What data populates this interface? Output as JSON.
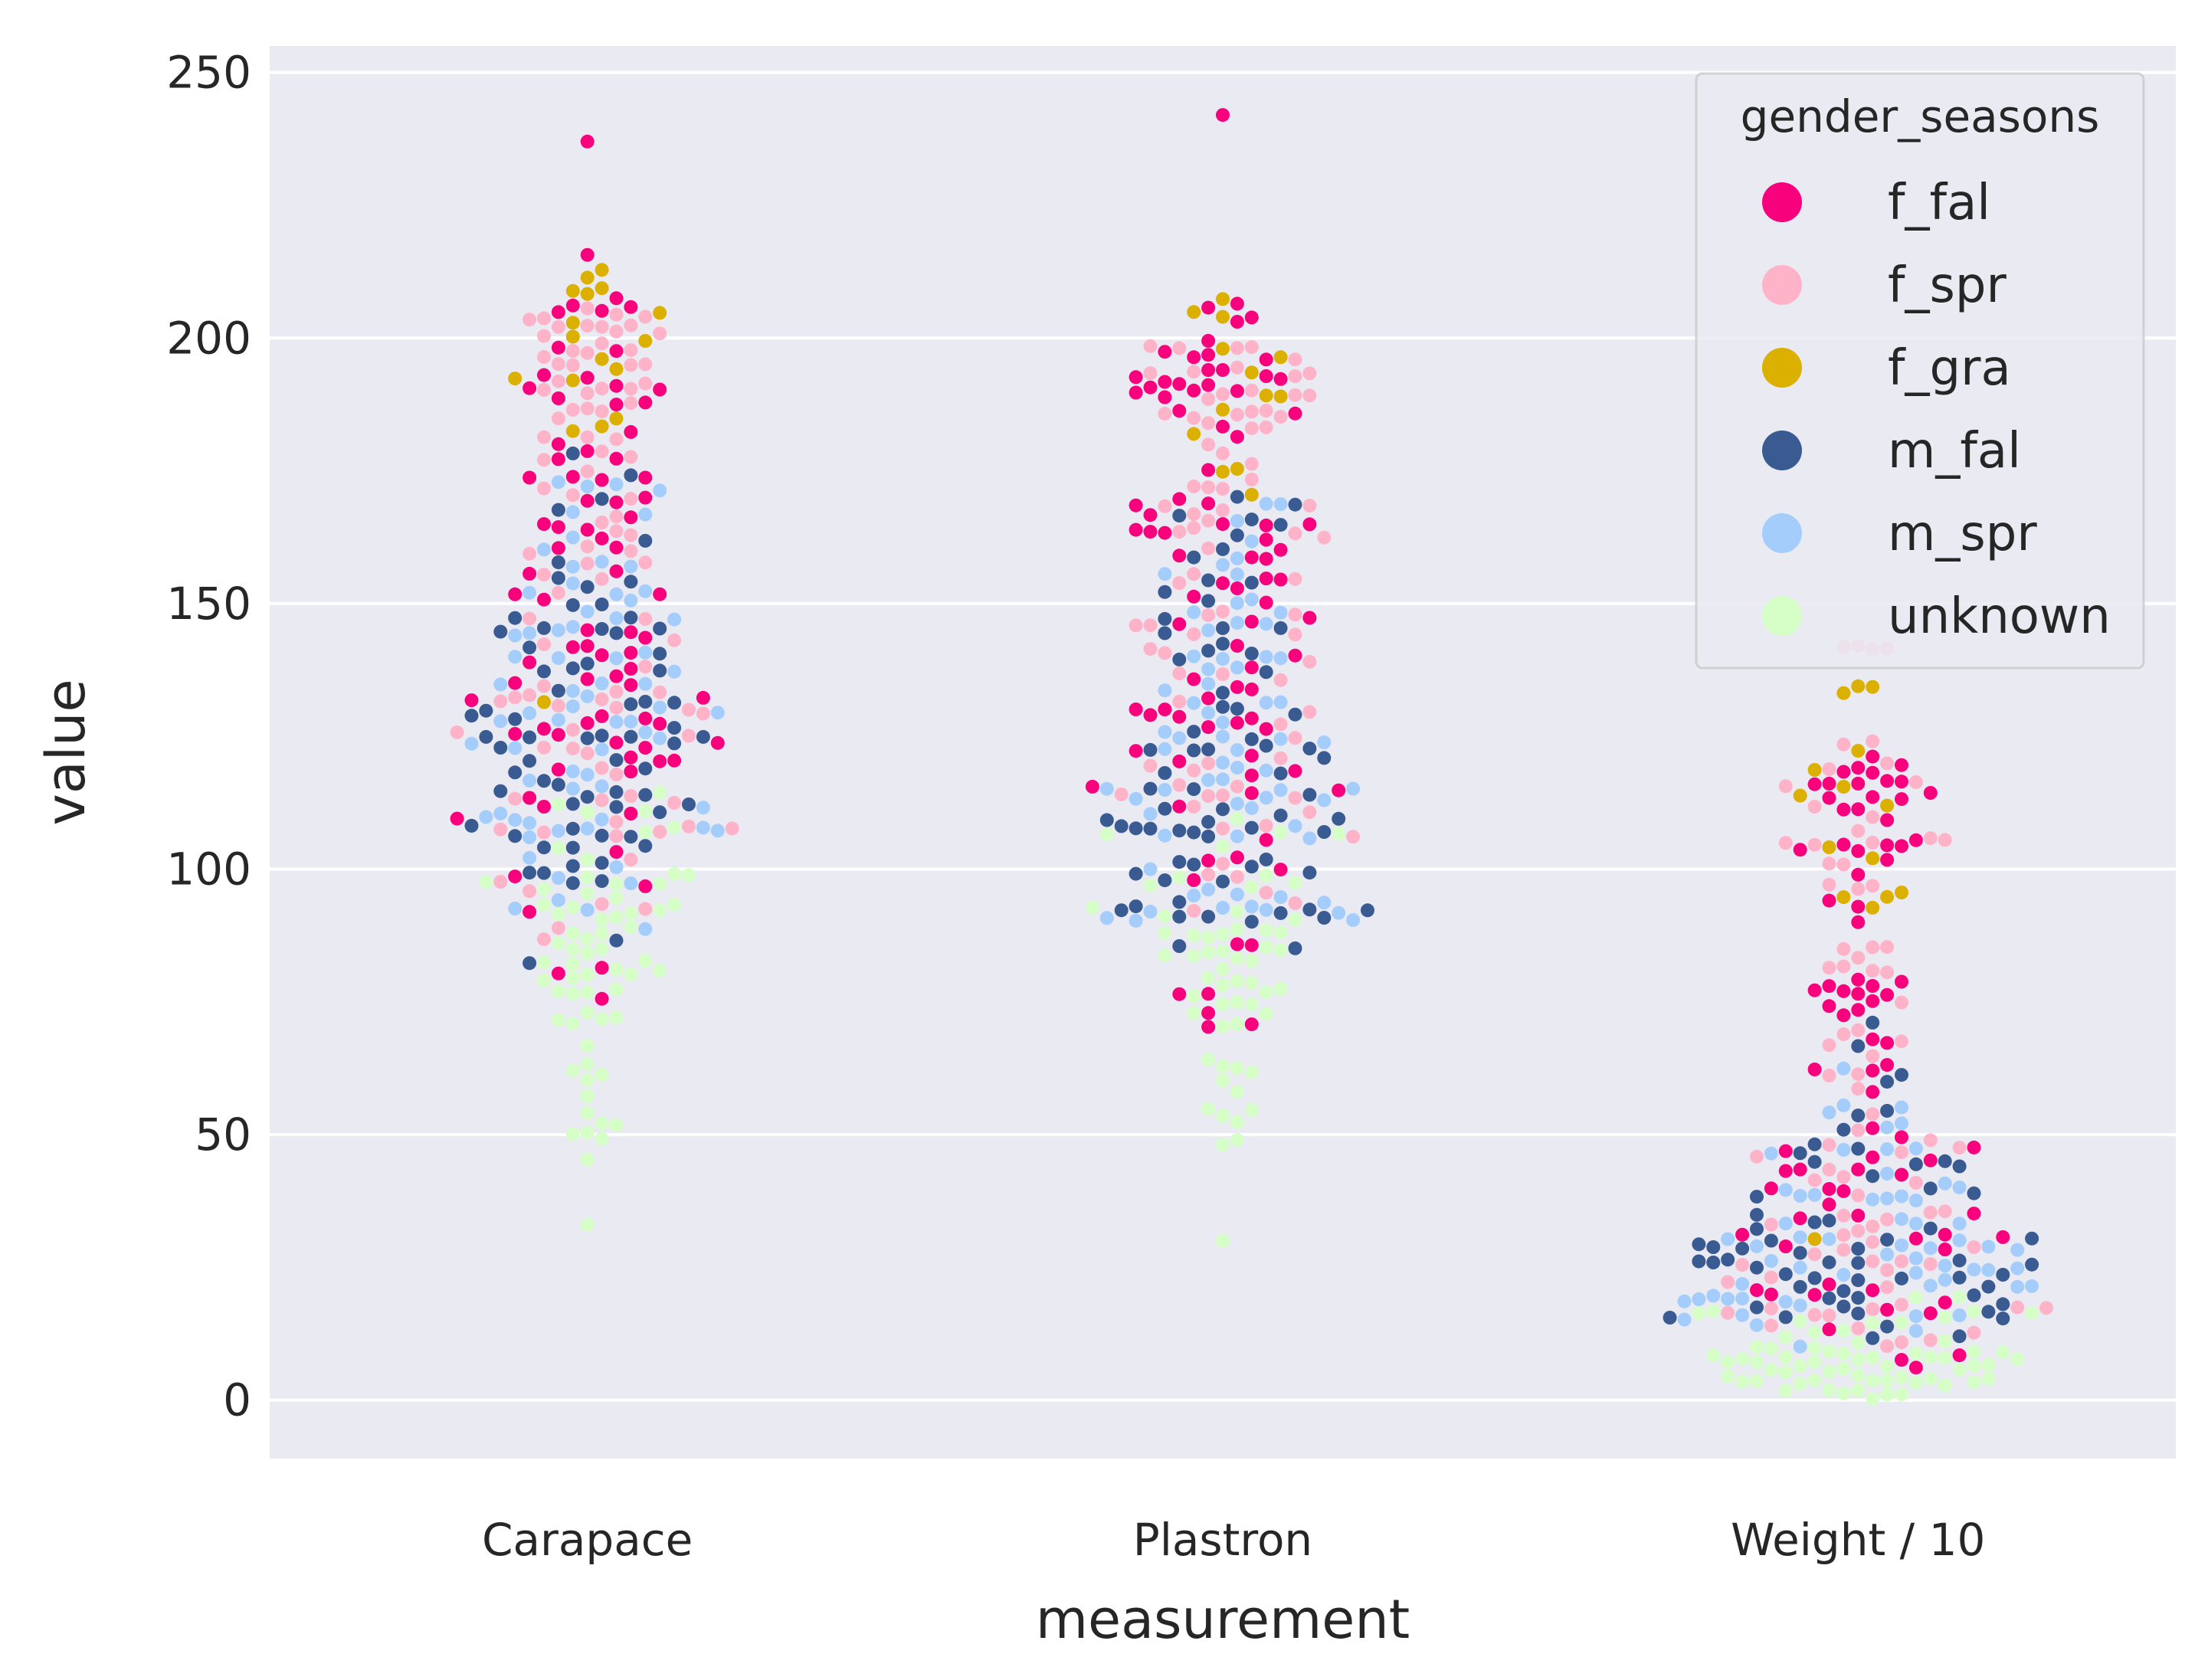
{
  "chart_data": {
    "type": "scatter",
    "subtype": "swarm",
    "xlabel": "measurement",
    "ylabel": "value",
    "categories": [
      "Carapace",
      "Plastron",
      "Weight / 10"
    ],
    "ylim": [
      -11,
      255
    ],
    "yticks": [
      0,
      50,
      100,
      150,
      200,
      250
    ],
    "grid": true,
    "legend": {
      "title": "gender_seasons",
      "position": "top-right",
      "entries": [
        {
          "name": "f_fal",
          "color": "#f7027c"
        },
        {
          "name": "f_spr",
          "color": "#ffb3c8"
        },
        {
          "name": "f_gra",
          "color": "#dcb000"
        },
        {
          "name": "m_fal",
          "color": "#3a5a92"
        },
        {
          "name": "m_spr",
          "color": "#a4cdfc"
        },
        {
          "name": "unknown",
          "color": "#d6ffc8"
        }
      ]
    },
    "series": [
      {
        "name": "f_fal",
        "groups": [
          [
            [
              [
                192,
                218
              ],
              6
            ],
            [
              [
                180,
                206
              ],
              9
            ],
            [
              [
                160,
                190
              ],
              14
            ],
            [
              [
                140,
                170
              ],
              12
            ],
            [
              [
                118,
                145
              ],
              22
            ],
            [
              [
                100,
                128
              ],
              12
            ],
            [
              [
                90,
                105
              ],
              3
            ],
            [
              [
                70,
                88
              ],
              3
            ],
            [
              237,
              1
            ]
          ],
          [
            [
              [
                190,
                208
              ],
              16
            ],
            [
              [
                180,
                195
              ],
              10
            ],
            [
              [
                150,
                176
              ],
              22
            ],
            [
              [
                125,
                150
              ],
              18
            ],
            [
              [
                100,
                125
              ],
              12
            ],
            [
              [
                85,
                100
              ],
              4
            ],
            [
              [
                60,
                80
              ],
              5
            ],
            [
              242,
              1
            ]
          ],
          [
            [
              [
                105,
                122
              ],
              18
            ],
            [
              [
                90,
                105
              ],
              10
            ],
            [
              [
                70,
                80
              ],
              12
            ],
            [
              [
                55,
                68
              ],
              6
            ],
            [
              [
                40,
                52
              ],
              10
            ],
            [
              [
                20,
                40
              ],
              16
            ],
            [
              [
                10,
                20
              ],
              6
            ],
            [
              [
                5,
                9
              ],
              3
            ]
          ]
        ]
      },
      {
        "name": "f_spr",
        "groups": [
          [
            [
              [
                190,
                206
              ],
              26
            ],
            [
              [
                165,
                190
              ],
              18
            ],
            [
              [
                140,
                165
              ],
              14
            ],
            [
              [
                120,
                140
              ],
              18
            ],
            [
              [
                100,
                120
              ],
              14
            ],
            [
              [
                85,
                100
              ],
              6
            ]
          ],
          [
            [
              [
                183,
                200
              ],
              24
            ],
            [
              [
                155,
                183
              ],
              18
            ],
            [
              [
                130,
                155
              ],
              16
            ],
            [
              [
                108,
                130
              ],
              16
            ],
            [
              [
                90,
                108
              ],
              8
            ]
          ],
          [
            [
              [
                100,
                125
              ],
              16
            ],
            [
              [
                70,
                100
              ],
              12
            ],
            [
              [
                50,
                70
              ],
              10
            ],
            [
              [
                25,
                50
              ],
              26
            ],
            [
              [
                10,
                25
              ],
              18
            ],
            [
              [
                140,
                143
              ],
              4
            ]
          ]
        ]
      },
      {
        "name": "f_gra",
        "groups": [
          [
            [
              [
                195,
                220
              ],
              10
            ],
            [
              [
                180,
                195
              ],
              6
            ],
            [
              [
                128,
                136
              ],
              1
            ]
          ],
          [
            [
              [
                180,
                211
              ],
              10
            ],
            [
              [
                170,
                178
              ],
              3
            ]
          ],
          [
            [
              [
                110,
                135
              ],
              8
            ],
            [
              [
                85,
                105
              ],
              6
            ],
            [
              [
                30,
                34
              ],
              1
            ]
          ]
        ]
      },
      {
        "name": "m_fal",
        "groups": [
          [
            [
              [
                155,
                180
              ],
              6
            ],
            [
              [
                130,
                155
              ],
              22
            ],
            [
              [
                110,
                130
              ],
              26
            ],
            [
              [
                95,
                110
              ],
              14
            ],
            [
              [
                80,
                90
              ],
              2
            ]
          ],
          [
            [
              [
                155,
                172
              ],
              8
            ],
            [
              [
                125,
                155
              ],
              18
            ],
            [
              [
                105,
                125
              ],
              26
            ],
            [
              [
                90,
                105
              ],
              18
            ],
            [
              [
                78,
                88
              ],
              2
            ]
          ],
          [
            [
              [
                55,
                75
              ],
              4
            ],
            [
              [
                35,
                55
              ],
              14
            ],
            [
              [
                20,
                35
              ],
              30
            ],
            [
              [
                10,
                20
              ],
              14
            ]
          ]
        ]
      },
      {
        "name": "m_spr",
        "groups": [
          [
            [
              [
                160,
                180
              ],
              8
            ],
            [
              [
                140,
                160
              ],
              16
            ],
            [
              [
                120,
                140
              ],
              22
            ],
            [
              [
                100,
                120
              ],
              18
            ],
            [
              [
                85,
                100
              ],
              6
            ]
          ],
          [
            [
              [
                150,
                170
              ],
              10
            ],
            [
              [
                130,
                150
              ],
              16
            ],
            [
              [
                110,
                130
              ],
              24
            ],
            [
              [
                90,
                110
              ],
              18
            ]
          ],
          [
            [
              [
                50,
                70
              ],
              6
            ],
            [
              [
                35,
                50
              ],
              14
            ],
            [
              [
                20,
                35
              ],
              28
            ],
            [
              [
                10,
                20
              ],
              14
            ]
          ]
        ]
      },
      {
        "name": "unknown",
        "groups": [
          [
            [
              [
                100,
                115
              ],
              8
            ],
            [
              [
                85,
                100
              ],
              22
            ],
            [
              [
                75,
                85
              ],
              16
            ],
            [
              [
                60,
                75
              ],
              10
            ],
            [
              [
                45,
                60
              ],
              8
            ],
            [
              33,
              1
            ]
          ],
          [
            [
              [
                95,
                110
              ],
              10
            ],
            [
              [
                78,
                95
              ],
              24
            ],
            [
              [
                70,
                78
              ],
              10
            ],
            [
              [
                55,
                70
              ],
              6
            ],
            [
              [
                45,
                55
              ],
              6
            ],
            [
              30,
              1
            ]
          ],
          [
            [
              [
                10,
                20
              ],
              16
            ],
            [
              [
                3,
                10
              ],
              40
            ],
            [
              [
                0,
                3
              ],
              8
            ]
          ]
        ]
      }
    ]
  }
}
